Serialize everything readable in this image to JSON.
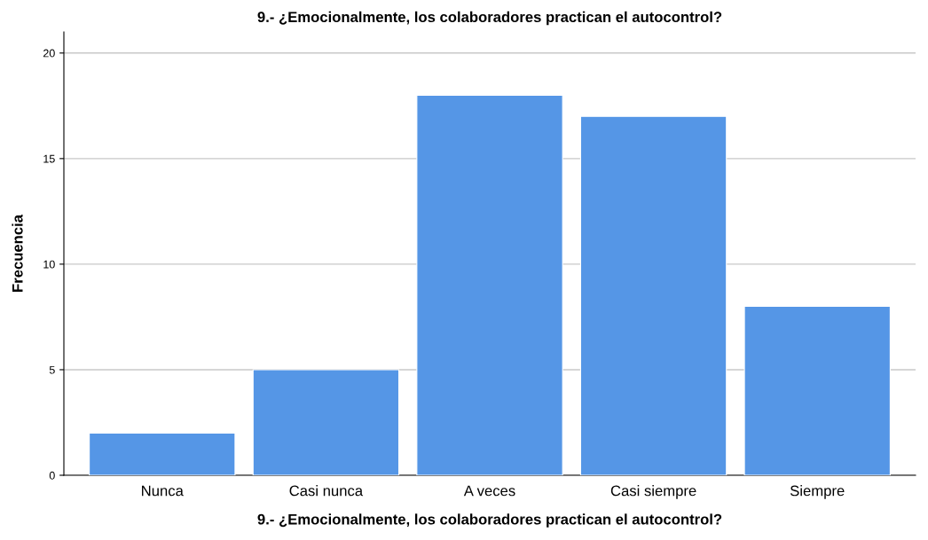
{
  "chart_data": {
    "type": "bar",
    "title": "9.- ¿Emocionalmente, los colaboradores practican el autocontrol?",
    "xlabel": "9.- ¿Emocionalmente, los colaboradores practican el autocontrol?",
    "ylabel": "Frecuencia",
    "categories": [
      "Nunca",
      "Casi nunca",
      "A veces",
      "Casi siempre",
      "Siempre"
    ],
    "values": [
      2,
      5,
      18,
      17,
      8
    ],
    "color": "#5596e6",
    "ylim": [
      0,
      21
    ],
    "yticks": [
      0,
      5,
      10,
      15,
      20
    ],
    "grid": "y"
  }
}
